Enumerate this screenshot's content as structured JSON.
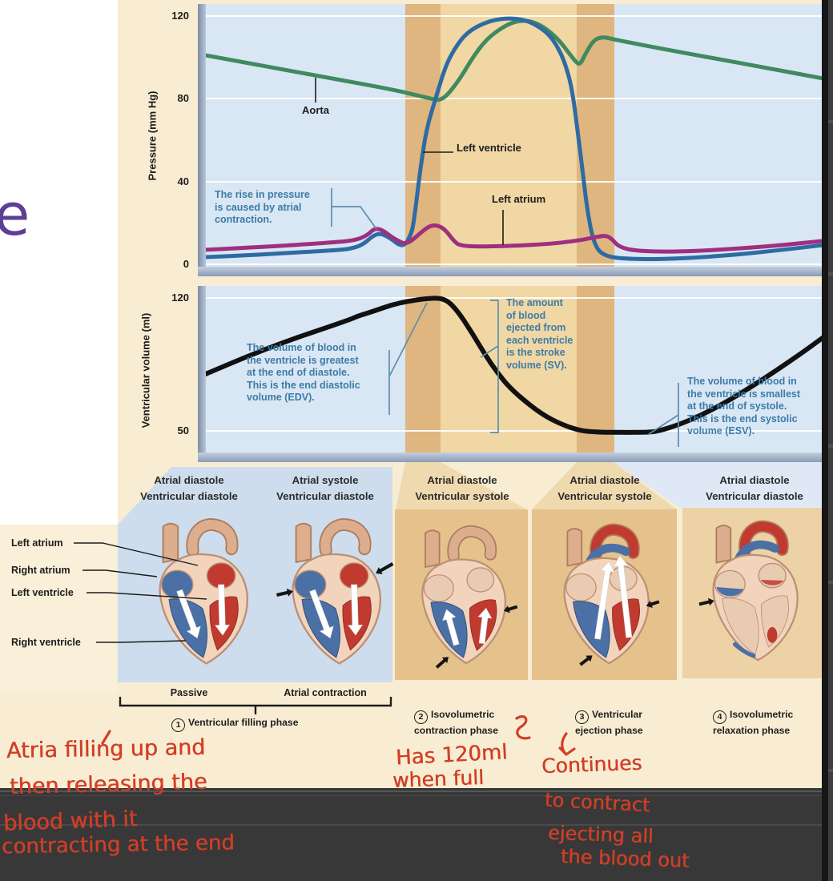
{
  "app": {
    "context": "note-page with cardiac cycle textbook diagram and handwritten annotations"
  },
  "colors": {
    "cream": "#f8edd2",
    "card_cream": "#faf0da",
    "plot_blue": "#d9e6f4",
    "band_dark": "#dfb67f",
    "band_light": "#f0d7a4",
    "panel_blue": "#cddded",
    "panel_tan": "#e5c28b",
    "panel_tan_light": "#ecd2a4",
    "aorta_green": "#3f8a5e",
    "ventricle_blue": "#2e6ba3",
    "atrium_purple": "#9e2f80",
    "volume_black": "#111111",
    "note_blue": "#3c7ca6",
    "handwriting_red": "#d13e27",
    "dark_footer": "#383838",
    "dark_edge": "#161616",
    "scroll_strip": "#3e3e3e",
    "vessel": "#dcae8e",
    "vesselEdge": "#ad7c5c",
    "oxyRed": "#c03a30",
    "deoxyBlue": "#4a70a6",
    "heartBody": "#f2d4bd",
    "heartEdge": "#bd8f74",
    "chamberEmpty": "#e9cbb2",
    "cutoff_letter_purple": "#5d3f96",
    "pointer_blue": "#5b8fae"
  },
  "left_margin": {
    "cutoff_letter": "e"
  },
  "pressure_chart": {
    "axis_label": "Pressure (mm Hg)",
    "curve_labels": {
      "aorta": "Aorta",
      "left_ventricle": "Left ventricle",
      "left_atrium": "Left atrium"
    },
    "note": [
      "The rise in pressure",
      "is caused by atrial",
      "contraction."
    ]
  },
  "volume_chart": {
    "axis_label": "Ventricular volume (ml)",
    "edv_note": [
      "The volume of blood in",
      "the ventricle is greatest",
      "at the end of diastole.",
      "This is the **end diastolic**",
      "**volume (EDV)**."
    ],
    "sv_note": [
      "The amount",
      "of blood",
      "ejected from",
      "each ventricle",
      "is the **stroke**",
      "**volume (SV)**."
    ],
    "esv_note": [
      "The volume of blood in",
      "the ventricle is smallest",
      "at the end of systole.",
      "This is the **end systolic**",
      "**volume (ESV)**."
    ]
  },
  "chart_data": [
    {
      "type": "line",
      "title": "Cardiac cycle pressures",
      "ylabel": "Pressure (mm Hg)",
      "yticks": [
        120,
        80,
        40,
        0
      ],
      "ylim": [
        0,
        126
      ],
      "x_axis": "fraction of displayed cardiac cycle (0-1), no tick labels shown",
      "grid": "horizontal white gridlines at yticks",
      "phase_bands": [
        {
          "from": 0.321,
          "to": 0.378,
          "shade": "dark"
        },
        {
          "from": 0.378,
          "to": 0.597,
          "shade": "light"
        },
        {
          "from": 0.597,
          "to": 0.657,
          "shade": "dark"
        }
      ],
      "series": [
        {
          "name": "Aorta",
          "color": "#3f8a5e",
          "points": [
            [
              0,
              101
            ],
            [
              0.1,
              95.5
            ],
            [
              0.2,
              90
            ],
            [
              0.3,
              84.5
            ],
            [
              0.35,
              81
            ],
            [
              0.37,
              79.5
            ],
            [
              0.378,
              79.5
            ],
            [
              0.39,
              82
            ],
            [
              0.41,
              90
            ],
            [
              0.43,
              100
            ],
            [
              0.45,
              108
            ],
            [
              0.47,
              113
            ],
            [
              0.49,
              116.5
            ],
            [
              0.51,
              118
            ],
            [
              0.53,
              117
            ],
            [
              0.55,
              113.5
            ],
            [
              0.57,
              108
            ],
            [
              0.585,
              102
            ],
            [
              0.597,
              97.5
            ],
            [
              0.603,
              96.5
            ],
            [
              0.612,
              102
            ],
            [
              0.625,
              108.5
            ],
            [
              0.64,
              110
            ],
            [
              0.66,
              108.5
            ],
            [
              0.72,
              105
            ],
            [
              0.82,
              99.5
            ],
            [
              0.92,
              94
            ],
            [
              1,
              89.5
            ]
          ]
        },
        {
          "name": "Left ventricle",
          "color": "#2e6ba3",
          "points": [
            [
              0,
              3.5
            ],
            [
              0.08,
              4.5
            ],
            [
              0.16,
              6
            ],
            [
              0.22,
              7
            ],
            [
              0.24,
              8
            ],
            [
              0.255,
              10
            ],
            [
              0.27,
              14
            ],
            [
              0.283,
              15
            ],
            [
              0.3,
              12
            ],
            [
              0.31,
              9.5
            ],
            [
              0.32,
              9
            ],
            [
              0.33,
              14
            ],
            [
              0.335,
              20
            ],
            [
              0.345,
              45
            ],
            [
              0.355,
              65
            ],
            [
              0.37,
              80
            ],
            [
              0.385,
              95
            ],
            [
              0.4,
              104
            ],
            [
              0.42,
              112
            ],
            [
              0.45,
              117
            ],
            [
              0.48,
              119
            ],
            [
              0.51,
              118.5
            ],
            [
              0.53,
              116
            ],
            [
              0.55,
              112
            ],
            [
              0.565,
              106
            ],
            [
              0.578,
              98
            ],
            [
              0.59,
              85
            ],
            [
              0.6,
              62
            ],
            [
              0.607,
              45
            ],
            [
              0.615,
              25
            ],
            [
              0.625,
              10
            ],
            [
              0.64,
              4
            ],
            [
              0.68,
              2.5
            ],
            [
              0.75,
              2.5
            ],
            [
              0.85,
              4.5
            ],
            [
              0.93,
              7
            ],
            [
              1,
              9.5
            ]
          ]
        },
        {
          "name": "Left atrium",
          "color": "#9e2f80",
          "points": [
            [
              0,
              7
            ],
            [
              0.1,
              8.5
            ],
            [
              0.2,
              10.5
            ],
            [
              0.24,
              11.5
            ],
            [
              0.26,
              14
            ],
            [
              0.272,
              17.5
            ],
            [
              0.285,
              16.5
            ],
            [
              0.3,
              13
            ],
            [
              0.312,
              11
            ],
            [
              0.32,
              10
            ],
            [
              0.33,
              11
            ],
            [
              0.345,
              15
            ],
            [
              0.36,
              18.5
            ],
            [
              0.372,
              19
            ],
            [
              0.385,
              17
            ],
            [
              0.4,
              11
            ],
            [
              0.41,
              9
            ],
            [
              0.44,
              8.5
            ],
            [
              0.5,
              9
            ],
            [
              0.56,
              10
            ],
            [
              0.6,
              11.5
            ],
            [
              0.625,
              13
            ],
            [
              0.645,
              14
            ],
            [
              0.655,
              12
            ],
            [
              0.665,
              8.5
            ],
            [
              0.69,
              6.5
            ],
            [
              0.75,
              6
            ],
            [
              0.83,
              7
            ],
            [
              0.92,
              9
            ],
            [
              1,
              11.5
            ]
          ]
        }
      ],
      "legend_position": "labels attached to curves with pointer lines"
    },
    {
      "type": "line",
      "title": "Ventricular volume",
      "ylabel": "Ventricular volume (ml)",
      "yticks": [
        120,
        50
      ],
      "ylim": [
        38,
        126
      ],
      "grid": "horizontal white gridlines at yticks",
      "series": [
        {
          "name": "Ventricular volume",
          "color": "#111111",
          "points": [
            [
              0,
              80
            ],
            [
              0.05,
              87
            ],
            [
              0.1,
              93.5
            ],
            [
              0.15,
              99.5
            ],
            [
              0.2,
              105
            ],
            [
              0.235,
              109
            ],
            [
              0.245,
              110.5
            ],
            [
              0.27,
              113
            ],
            [
              0.3,
              116.5
            ],
            [
              0.33,
              118.5
            ],
            [
              0.355,
              119.7
            ],
            [
              0.38,
              120
            ],
            [
              0.395,
              117
            ],
            [
              0.41,
              111
            ],
            [
              0.43,
              101
            ],
            [
              0.45,
              90
            ],
            [
              0.47,
              80.5
            ],
            [
              0.49,
              72.5
            ],
            [
              0.52,
              64
            ],
            [
              0.55,
              57
            ],
            [
              0.58,
              52.5
            ],
            [
              0.6,
              50.5
            ],
            [
              0.615,
              49.7
            ],
            [
              0.64,
              49.3
            ],
            [
              0.68,
              49.2
            ],
            [
              0.715,
              49.3
            ],
            [
              0.73,
              50
            ],
            [
              0.76,
              53
            ],
            [
              0.8,
              58.5
            ],
            [
              0.84,
              65.5
            ],
            [
              0.88,
              73.5
            ],
            [
              0.92,
              82
            ],
            [
              0.96,
              91
            ],
            [
              1,
              100.5
            ]
          ]
        }
      ]
    }
  ],
  "heart_structure_labels": [
    "Left atrium",
    "Right atrium",
    "Left ventricle",
    "Right ventricle"
  ],
  "panels": [
    {
      "top": "Atrial diastole",
      "bottom": "Ventricular diastole",
      "sub": "Passive"
    },
    {
      "top": "Atrial systole",
      "bottom": "Ventricular diastole",
      "sub": "Atrial contraction"
    },
    {
      "top": "Atrial diastole",
      "bottom": "Ventricular systole"
    },
    {
      "top": "Atrial diastole",
      "bottom": "Ventricular systole"
    },
    {
      "top": "Atrial diastole",
      "bottom": "Ventricular diastole"
    }
  ],
  "phases": [
    {
      "num": "1",
      "lines": [
        "Ventricular filling phase"
      ]
    },
    {
      "num": "2",
      "lines": [
        "Isovolumetric",
        "contraction phase"
      ]
    },
    {
      "num": "3",
      "lines": [
        "Ventricular",
        "ejection phase"
      ]
    },
    {
      "num": "4",
      "lines": [
        "Isovolumetric",
        "relaxation phase"
      ]
    }
  ],
  "handwriting": {
    "color": "#d13e27",
    "lines": [
      "Atria filling up and",
      "then releasing the",
      "blood with it",
      "contracting at the end",
      "Has 120ml",
      "when full",
      "Continues",
      "to contract",
      "ejecting all",
      "the blood out"
    ],
    "marks": [
      "tick-above-filling",
      "squiggle-after-phase-2",
      "down-arrow-above-continues"
    ]
  }
}
